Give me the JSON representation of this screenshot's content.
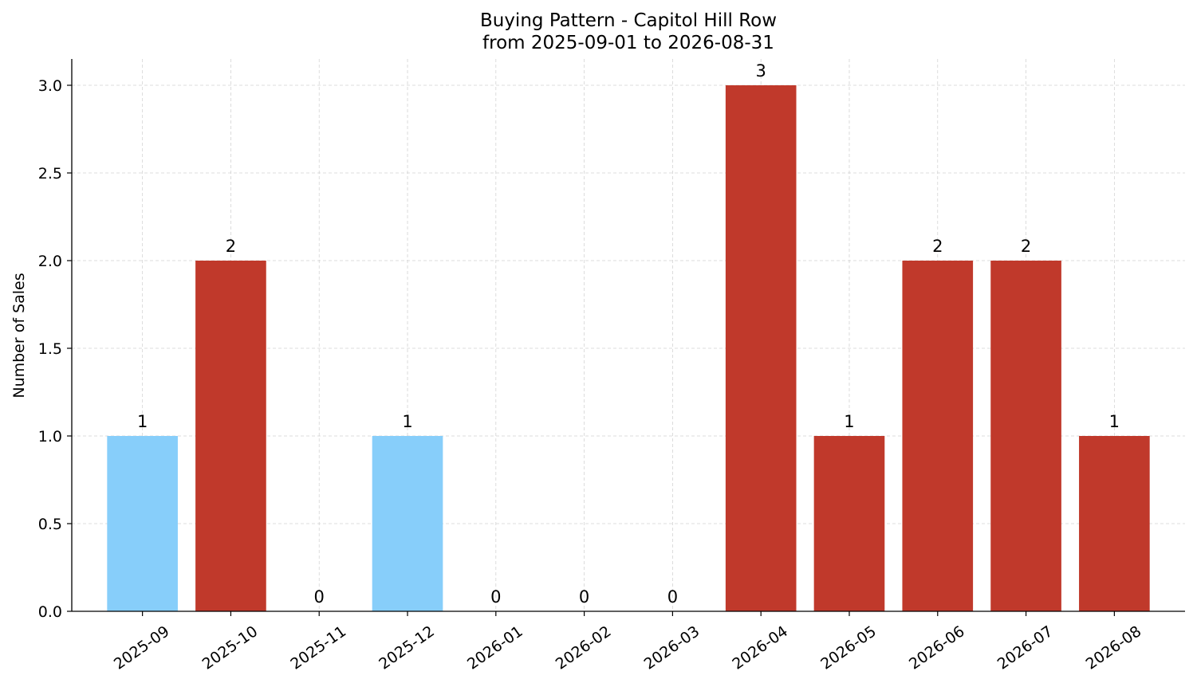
{
  "chart_data": {
    "type": "bar",
    "title": "Buying Pattern - Capitol Hill Row",
    "subtitle": "from 2025-09-01 to 2026-08-31",
    "xlabel": "",
    "ylabel": "Number of Sales",
    "categories": [
      "2025-09",
      "2025-10",
      "2025-11",
      "2025-12",
      "2026-01",
      "2026-02",
      "2026-03",
      "2026-04",
      "2026-05",
      "2026-06",
      "2026-07",
      "2026-08"
    ],
    "values": [
      1,
      2,
      0,
      1,
      0,
      0,
      0,
      3,
      1,
      2,
      2,
      1
    ],
    "bar_colors": [
      "#87cefa",
      "#c0392b",
      "#c0392b",
      "#87cefa",
      "#c0392b",
      "#c0392b",
      "#c0392b",
      "#c0392b",
      "#c0392b",
      "#c0392b",
      "#c0392b",
      "#c0392b"
    ],
    "ylim": [
      0,
      3.15
    ],
    "yticks": [
      0,
      0.5,
      1,
      1.5,
      2,
      2.5,
      3
    ],
    "ytick_labels": [
      "0.0",
      "0.5",
      "1.0",
      "1.5",
      "2.0",
      "2.5",
      "3.0"
    ],
    "grid": true,
    "legend": "none"
  }
}
